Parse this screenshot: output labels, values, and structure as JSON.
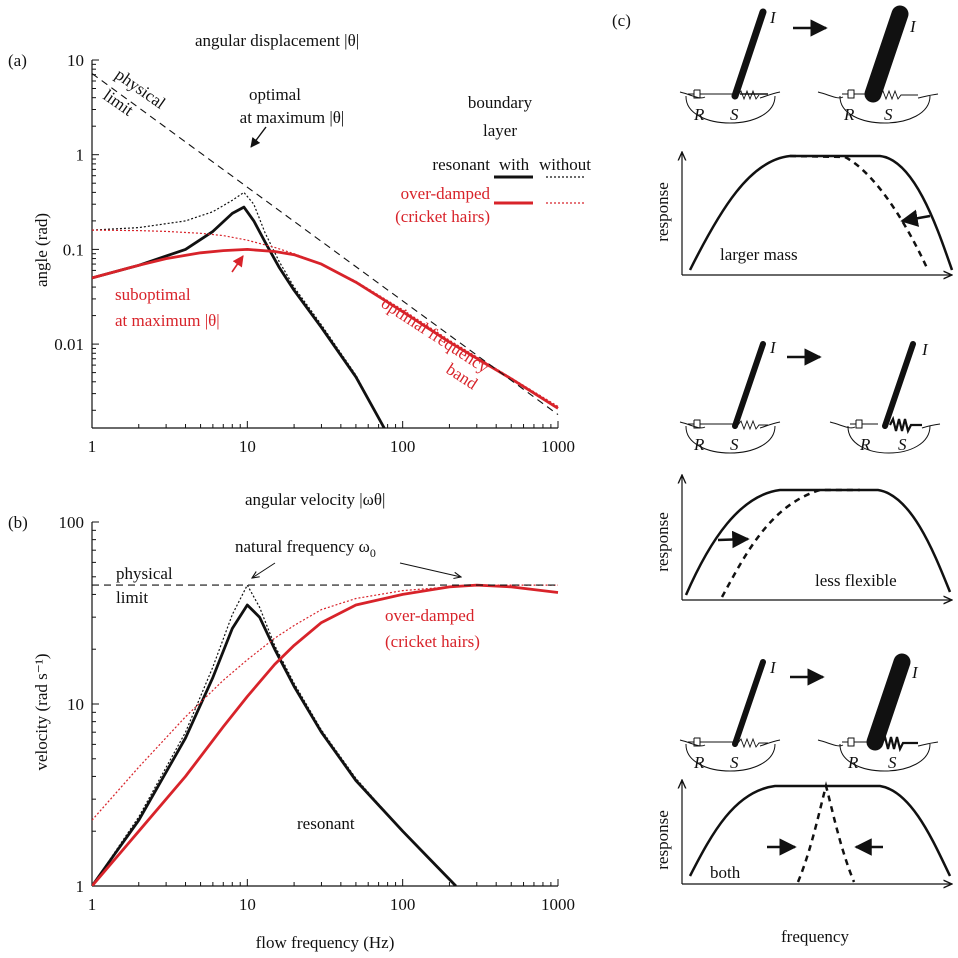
{
  "colors": {
    "black": "#111111",
    "red": "#d8232a"
  },
  "panel_a": {
    "label": "(a)",
    "title": "angular displacement |θ|",
    "ylabel": "angle (rad)",
    "limit_label_1": "physical",
    "limit_label_2": "limit",
    "opt_label_1": "optimal",
    "opt_label_2": "at maximum |θ|",
    "legend_header_1": "boundary",
    "legend_header_2": "layer",
    "legend_with": "with",
    "legend_without": "without",
    "legend_resonant": "resonant",
    "legend_overdamped": "over-damped",
    "legend_cricket": "(cricket hairs)",
    "subopt_label_1": "suboptimal",
    "subopt_label_2": "at maximum |θ|",
    "band_label_1": "optimal frequency",
    "band_label_2": "band"
  },
  "panel_b": {
    "label": "(b)",
    "title": "angular velocity |ωθ|",
    "ylabel": "velocity (rad s⁻¹)",
    "xlabel": "flow frequency (Hz)",
    "limit_label_1": "physical",
    "limit_label_2": "limit",
    "natural_label": "natural frequency ω",
    "natural_sub": "0",
    "overdamped_1": "over-damped",
    "overdamped_2": "(cricket hairs)",
    "resonant_label": "resonant"
  },
  "panel_c": {
    "label": "(c)",
    "I": "I",
    "R": "R",
    "S": "S",
    "ylabel": "response",
    "xlabel": "frequency",
    "case1": "larger mass",
    "case2": "less flexible",
    "case3": "both"
  },
  "chart_data": [
    {
      "panel": "a",
      "type": "line",
      "title": "angular displacement |θ|",
      "xlabel": "",
      "ylabel": "angle (rad)",
      "xscale": "log",
      "yscale": "log",
      "xlim": [
        1,
        1000
      ],
      "ylim": [
        0.0013,
        10
      ],
      "x_ticks": [
        "1",
        "10",
        "100",
        "1000"
      ],
      "y_ticks": [
        "0.01",
        "0.1",
        "1",
        "10"
      ],
      "series": [
        {
          "name": "resonant, with",
          "color": "#111111",
          "style": "solid",
          "x": [
            1,
            2,
            4,
            6,
            8,
            9.5,
            11,
            13,
            16,
            20,
            30,
            50,
            76
          ],
          "y": [
            0.05,
            0.068,
            0.1,
            0.155,
            0.24,
            0.28,
            0.2,
            0.12,
            0.065,
            0.037,
            0.015,
            0.0045,
            0.0013
          ]
        },
        {
          "name": "resonant, without",
          "color": "#111111",
          "style": "dotted",
          "x": [
            1,
            2,
            4,
            6,
            8,
            9.5,
            11,
            13,
            16,
            20,
            30,
            50,
            76
          ],
          "y": [
            0.16,
            0.17,
            0.2,
            0.25,
            0.33,
            0.4,
            0.3,
            0.15,
            0.075,
            0.04,
            0.016,
            0.0047,
            0.0013
          ]
        },
        {
          "name": "over-damped, with",
          "color": "#d8232a",
          "style": "solid",
          "x": [
            1,
            2,
            3,
            5,
            7,
            10,
            15,
            20,
            30,
            50,
            100,
            200,
            500,
            1000
          ],
          "y": [
            0.05,
            0.068,
            0.08,
            0.092,
            0.097,
            0.1,
            0.095,
            0.088,
            0.07,
            0.045,
            0.022,
            0.0105,
            0.0043,
            0.0021
          ]
        },
        {
          "name": "over-damped, without",
          "color": "#d8232a",
          "style": "dotted",
          "x": [
            1,
            2,
            3,
            5,
            7,
            10,
            15,
            20,
            30,
            50,
            100,
            200,
            500,
            1000
          ],
          "y": [
            0.16,
            0.158,
            0.155,
            0.148,
            0.14,
            0.125,
            0.105,
            0.09,
            0.07,
            0.046,
            0.023,
            0.011,
            0.0044,
            0.0022
          ]
        },
        {
          "name": "physical limit",
          "color": "#111111",
          "style": "dashed",
          "x": [
            1,
            1000
          ],
          "y": [
            7.2,
            0.0018
          ]
        }
      ]
    },
    {
      "panel": "b",
      "type": "line",
      "title": "angular velocity |ωθ|",
      "xlabel": "flow frequency (Hz)",
      "ylabel": "velocity (rad s⁻¹)",
      "xscale": "log",
      "yscale": "log",
      "xlim": [
        1,
        1000
      ],
      "ylim": [
        1,
        100
      ],
      "x_ticks": [
        "1",
        "10",
        "100",
        "1000"
      ],
      "y_ticks": [
        "1",
        "10",
        "100"
      ],
      "series": [
        {
          "name": "resonant, with",
          "color": "#111111",
          "style": "solid",
          "x": [
            1,
            2,
            4,
            6,
            8,
            10,
            12,
            15,
            20,
            30,
            50,
            100,
            150,
            220
          ],
          "y": [
            1,
            2.3,
            6.5,
            14,
            26,
            35,
            30,
            20,
            12.5,
            7,
            3.8,
            2,
            1.4,
            1
          ]
        },
        {
          "name": "resonant, without",
          "color": "#111111",
          "style": "dotted",
          "x": [
            1,
            2,
            4,
            6,
            8,
            10,
            12,
            15,
            20,
            30,
            50,
            100,
            150,
            220
          ],
          "y": [
            1,
            2.4,
            7,
            16,
            31,
            45,
            34,
            21,
            13,
            7.2,
            3.9,
            2,
            1.4,
            1
          ]
        },
        {
          "name": "over-damped, with",
          "color": "#d8232a",
          "style": "solid",
          "x": [
            1,
            2,
            4,
            7,
            10,
            15,
            20,
            30,
            50,
            100,
            200,
            300,
            500,
            1000
          ],
          "y": [
            1,
            2,
            4,
            7.5,
            11,
            16.5,
            21,
            28,
            35,
            40,
            44,
            45,
            44,
            41
          ]
        },
        {
          "name": "over-damped, without",
          "color": "#d8232a",
          "style": "dotted",
          "x": [
            1,
            2,
            4,
            7,
            10,
            15,
            20,
            30,
            50,
            100,
            200,
            300,
            500,
            1000
          ],
          "y": [
            2.3,
            4.5,
            8.5,
            13.5,
            17.5,
            23,
            27,
            33,
            38,
            42,
            44,
            45,
            45,
            45
          ]
        },
        {
          "name": "physical limit",
          "color": "#111111",
          "style": "dashed",
          "x": [
            1,
            1000
          ],
          "y": [
            45,
            45
          ]
        }
      ]
    }
  ]
}
